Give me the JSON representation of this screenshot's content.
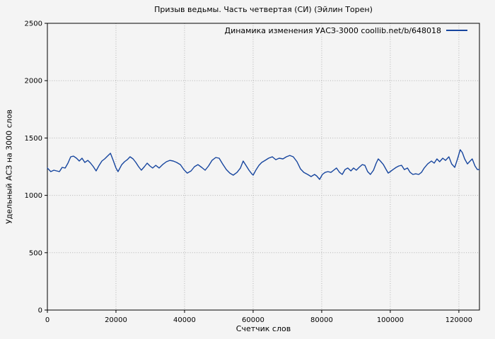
{
  "title": "Призыв ведьмы. Часть четвертая (СИ) (Эйлин Торен)",
  "legend": {
    "label": "Динамика изменения УАСЗ-3000 coollib.net/b/648018"
  },
  "axes": {
    "x": {
      "label": "Счетчик слов",
      "ticks": [
        0,
        20000,
        40000,
        60000,
        80000,
        100000,
        120000
      ]
    },
    "y": {
      "label": "Удельный АСЗ на 3000 слов",
      "ticks": [
        0,
        500,
        1000,
        1500,
        2000,
        2500
      ]
    }
  },
  "colors": {
    "background": "#f4f4f4",
    "line": "#16459e",
    "grid": "#b3b3b3",
    "axis": "#000000",
    "text": "#000000"
  },
  "chart_data": {
    "type": "line",
    "title": "Призыв ведьмы. Часть четвертая (СИ) (Эйлин Торен)",
    "xlabel": "Счетчик слов",
    "ylabel": "Удельный АСЗ на 3000 слов",
    "xlim": [
      0,
      126000
    ],
    "ylim": [
      0,
      2500
    ],
    "x_ticks": [
      0,
      20000,
      40000,
      60000,
      80000,
      100000,
      120000
    ],
    "y_ticks": [
      0,
      500,
      1000,
      1500,
      2000,
      2500
    ],
    "grid": true,
    "grid_style": "dotted",
    "legend_position": "top-right-inside",
    "series": [
      {
        "name": "Динамика изменения УАСЗ-3000 coollib.net/b/648018",
        "color": "#16459e",
        "x": [
          0,
          1000,
          1900,
          2700,
          3500,
          4300,
          5200,
          6000,
          6800,
          7600,
          8500,
          9300,
          10100,
          10900,
          11800,
          12600,
          13400,
          14200,
          15100,
          15900,
          16700,
          17500,
          18400,
          19200,
          20000,
          20600,
          21700,
          22500,
          23300,
          24100,
          25000,
          25800,
          26600,
          27400,
          28300,
          29100,
          29900,
          30700,
          31600,
          32600,
          33600,
          34700,
          35700,
          36700,
          37700,
          38800,
          39800,
          40800,
          41900,
          42900,
          43900,
          45000,
          46000,
          47000,
          48000,
          49100,
          50100,
          51100,
          52200,
          53200,
          54200,
          55300,
          56300,
          57100,
          57900,
          58800,
          59600,
          60000,
          60900,
          61700,
          62500,
          63500,
          64500,
          65600,
          66600,
          67600,
          68700,
          69700,
          70700,
          71700,
          72800,
          73800,
          74800,
          75900,
          76900,
          77900,
          78500,
          79400,
          80200,
          81000,
          81800,
          82700,
          83500,
          84300,
          85200,
          86000,
          86800,
          87600,
          88500,
          89300,
          90100,
          90900,
          91800,
          92600,
          93400,
          94200,
          95100,
          95900,
          96500,
          97100,
          98000,
          98800,
          99400,
          100000,
          100800,
          101700,
          102500,
          103300,
          104100,
          105000,
          105800,
          106600,
          107400,
          108300,
          109100,
          109900,
          110900,
          112000,
          112800,
          113600,
          114400,
          115300,
          116100,
          117100,
          117900,
          118800,
          119600,
          120400,
          121000,
          121700,
          122500,
          123100,
          123900,
          124700,
          125400,
          126000
        ],
        "y": [
          1238,
          1207,
          1219,
          1213,
          1207,
          1244,
          1238,
          1281,
          1336,
          1342,
          1324,
          1299,
          1324,
          1287,
          1305,
          1281,
          1250,
          1213,
          1262,
          1299,
          1318,
          1342,
          1367,
          1305,
          1238,
          1207,
          1268,
          1293,
          1311,
          1336,
          1318,
          1287,
          1250,
          1219,
          1250,
          1281,
          1256,
          1238,
          1262,
          1238,
          1268,
          1293,
          1305,
          1299,
          1287,
          1268,
          1225,
          1194,
          1213,
          1250,
          1268,
          1244,
          1219,
          1256,
          1305,
          1330,
          1324,
          1274,
          1225,
          1194,
          1176,
          1200,
          1238,
          1299,
          1262,
          1219,
          1188,
          1176,
          1225,
          1262,
          1287,
          1305,
          1324,
          1336,
          1311,
          1324,
          1318,
          1336,
          1348,
          1336,
          1293,
          1231,
          1200,
          1182,
          1164,
          1182,
          1170,
          1139,
          1182,
          1200,
          1207,
          1200,
          1219,
          1238,
          1200,
          1182,
          1225,
          1238,
          1213,
          1238,
          1219,
          1244,
          1268,
          1262,
          1207,
          1182,
          1219,
          1281,
          1318,
          1299,
          1268,
          1225,
          1194,
          1207,
          1225,
          1244,
          1256,
          1262,
          1225,
          1238,
          1200,
          1182,
          1188,
          1182,
          1200,
          1238,
          1274,
          1299,
          1281,
          1318,
          1293,
          1324,
          1305,
          1336,
          1274,
          1244,
          1318,
          1398,
          1373,
          1318,
          1274,
          1293,
          1318,
          1256,
          1225,
          1225
        ]
      }
    ]
  }
}
